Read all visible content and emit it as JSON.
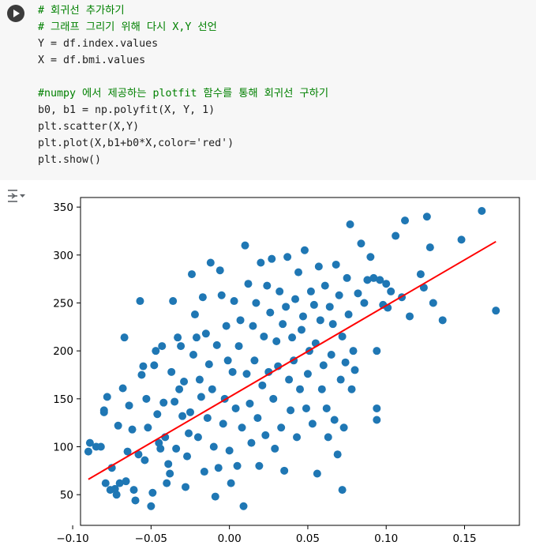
{
  "code_cell": {
    "lines": [
      "# 회귀선 추가하기",
      "# 그래프 그리기 위해 다시 X,Y 선언",
      "Y = df.index.values",
      "X = df.bmi.values",
      "",
      "#numpy 에서 제공하는 plotfit 함수를 통해 회귀선 구하기",
      "b0, b1 = np.polyfit(X, Y, 1)",
      "plt.scatter(X,Y)",
      "plt.plot(X,b1+b0*X,color='red')",
      "plt.show()"
    ],
    "run_icon": "play-icon"
  },
  "output": {
    "toggle_icon": "output-toggle-icon"
  },
  "chart_data": {
    "type": "scatter",
    "xlim": [
      -0.095,
      0.185
    ],
    "ylim": [
      18,
      360
    ],
    "xticks": [
      -0.1,
      -0.05,
      0.0,
      0.05,
      0.1,
      0.15
    ],
    "xtick_labels": [
      "−0.10",
      "−0.05",
      "0.00",
      "0.05",
      "0.10",
      "0.15"
    ],
    "yticks": [
      50,
      100,
      150,
      200,
      250,
      300,
      350
    ],
    "ytick_labels": [
      "50",
      "100",
      "150",
      "200",
      "250",
      "300",
      "350"
    ],
    "grid": false,
    "colors": {
      "points": "#1f77b4",
      "line": "#ff0000"
    },
    "points": [
      [
        -0.09,
        95
      ],
      [
        -0.089,
        104
      ],
      [
        -0.085,
        100
      ],
      [
        -0.082,
        100
      ],
      [
        -0.079,
        62
      ],
      [
        -0.08,
        136
      ],
      [
        -0.08,
        138
      ],
      [
        -0.078,
        152
      ],
      [
        -0.076,
        55
      ],
      [
        -0.075,
        78
      ],
      [
        -0.073,
        56
      ],
      [
        -0.072,
        50
      ],
      [
        -0.07,
        62
      ],
      [
        -0.071,
        122
      ],
      [
        -0.068,
        161
      ],
      [
        -0.067,
        214
      ],
      [
        -0.066,
        64
      ],
      [
        -0.065,
        95
      ],
      [
        -0.064,
        143
      ],
      [
        -0.062,
        118
      ],
      [
        -0.061,
        55
      ],
      [
        -0.06,
        44
      ],
      [
        -0.058,
        92
      ],
      [
        -0.057,
        252
      ],
      [
        -0.056,
        175
      ],
      [
        -0.055,
        184
      ],
      [
        -0.054,
        86
      ],
      [
        -0.053,
        150
      ],
      [
        -0.052,
        120
      ],
      [
        -0.05,
        38
      ],
      [
        -0.049,
        52
      ],
      [
        -0.048,
        185
      ],
      [
        -0.047,
        200
      ],
      [
        -0.046,
        134
      ],
      [
        -0.045,
        104
      ],
      [
        -0.044,
        98
      ],
      [
        -0.043,
        205
      ],
      [
        -0.042,
        146
      ],
      [
        -0.041,
        110
      ],
      [
        -0.04,
        62
      ],
      [
        -0.039,
        82
      ],
      [
        -0.038,
        72
      ],
      [
        -0.037,
        178
      ],
      [
        -0.036,
        252
      ],
      [
        -0.035,
        147
      ],
      [
        -0.034,
        98
      ],
      [
        -0.033,
        214
      ],
      [
        -0.032,
        160
      ],
      [
        -0.031,
        205
      ],
      [
        -0.03,
        132
      ],
      [
        -0.029,
        168
      ],
      [
        -0.028,
        58
      ],
      [
        -0.027,
        90
      ],
      [
        -0.026,
        114
      ],
      [
        -0.025,
        136
      ],
      [
        -0.024,
        280
      ],
      [
        -0.023,
        196
      ],
      [
        -0.022,
        238
      ],
      [
        -0.021,
        214
      ],
      [
        -0.02,
        110
      ],
      [
        -0.019,
        170
      ],
      [
        -0.018,
        152
      ],
      [
        -0.017,
        256
      ],
      [
        -0.016,
        74
      ],
      [
        -0.015,
        218
      ],
      [
        -0.014,
        130
      ],
      [
        -0.013,
        186
      ],
      [
        -0.012,
        292
      ],
      [
        -0.011,
        160
      ],
      [
        -0.01,
        100
      ],
      [
        -0.009,
        48
      ],
      [
        -0.008,
        206
      ],
      [
        -0.007,
        78
      ],
      [
        -0.006,
        284
      ],
      [
        -0.005,
        258
      ],
      [
        -0.004,
        124
      ],
      [
        -0.003,
        150
      ],
      [
        -0.002,
        226
      ],
      [
        -0.001,
        190
      ],
      [
        0.0,
        96
      ],
      [
        0.001,
        62
      ],
      [
        0.002,
        178
      ],
      [
        0.003,
        252
      ],
      [
        0.004,
        140
      ],
      [
        0.005,
        80
      ],
      [
        0.006,
        205
      ],
      [
        0.007,
        232
      ],
      [
        0.008,
        120
      ],
      [
        0.009,
        38
      ],
      [
        0.01,
        310
      ],
      [
        0.011,
        176
      ],
      [
        0.012,
        270
      ],
      [
        0.013,
        145
      ],
      [
        0.014,
        104
      ],
      [
        0.015,
        226
      ],
      [
        0.016,
        190
      ],
      [
        0.017,
        250
      ],
      [
        0.018,
        130
      ],
      [
        0.019,
        80
      ],
      [
        0.02,
        292
      ],
      [
        0.021,
        164
      ],
      [
        0.022,
        215
      ],
      [
        0.023,
        112
      ],
      [
        0.024,
        268
      ],
      [
        0.025,
        178
      ],
      [
        0.026,
        240
      ],
      [
        0.027,
        296
      ],
      [
        0.028,
        150
      ],
      [
        0.029,
        98
      ],
      [
        0.03,
        210
      ],
      [
        0.031,
        184
      ],
      [
        0.032,
        262
      ],
      [
        0.033,
        120
      ],
      [
        0.034,
        228
      ],
      [
        0.035,
        75
      ],
      [
        0.036,
        246
      ],
      [
        0.037,
        298
      ],
      [
        0.038,
        170
      ],
      [
        0.039,
        138
      ],
      [
        0.04,
        214
      ],
      [
        0.041,
        190
      ],
      [
        0.042,
        254
      ],
      [
        0.043,
        110
      ],
      [
        0.044,
        282
      ],
      [
        0.045,
        160
      ],
      [
        0.046,
        222
      ],
      [
        0.047,
        236
      ],
      [
        0.048,
        305
      ],
      [
        0.049,
        140
      ],
      [
        0.05,
        176
      ],
      [
        0.051,
        200
      ],
      [
        0.052,
        262
      ],
      [
        0.053,
        124
      ],
      [
        0.054,
        248
      ],
      [
        0.055,
        208
      ],
      [
        0.056,
        72
      ],
      [
        0.057,
        288
      ],
      [
        0.058,
        232
      ],
      [
        0.059,
        160
      ],
      [
        0.06,
        185
      ],
      [
        0.061,
        268
      ],
      [
        0.062,
        140
      ],
      [
        0.063,
        110
      ],
      [
        0.064,
        246
      ],
      [
        0.065,
        196
      ],
      [
        0.066,
        228
      ],
      [
        0.067,
        128
      ],
      [
        0.068,
        290
      ],
      [
        0.069,
        92
      ],
      [
        0.07,
        258
      ],
      [
        0.071,
        170
      ],
      [
        0.072,
        215
      ],
      [
        0.072,
        55
      ],
      [
        0.073,
        120
      ],
      [
        0.074,
        188
      ],
      [
        0.075,
        276
      ],
      [
        0.076,
        238
      ],
      [
        0.077,
        332
      ],
      [
        0.078,
        160
      ],
      [
        0.079,
        200
      ],
      [
        0.08,
        180
      ],
      [
        0.082,
        260
      ],
      [
        0.084,
        312
      ],
      [
        0.086,
        250
      ],
      [
        0.088,
        274
      ],
      [
        0.09,
        298
      ],
      [
        0.092,
        276
      ],
      [
        0.094,
        200
      ],
      [
        0.094,
        140
      ],
      [
        0.094,
        128
      ],
      [
        0.096,
        274
      ],
      [
        0.098,
        248
      ],
      [
        0.1,
        270
      ],
      [
        0.101,
        245
      ],
      [
        0.103,
        262
      ],
      [
        0.106,
        320
      ],
      [
        0.11,
        256
      ],
      [
        0.112,
        336
      ],
      [
        0.115,
        236
      ],
      [
        0.122,
        280
      ],
      [
        0.124,
        266
      ],
      [
        0.126,
        340
      ],
      [
        0.128,
        308
      ],
      [
        0.13,
        250
      ],
      [
        0.136,
        232
      ],
      [
        0.148,
        316
      ],
      [
        0.161,
        346
      ],
      [
        0.17,
        242
      ]
    ],
    "regression_line": {
      "x": [
        -0.09,
        0.17
      ],
      "y": [
        66,
        314
      ]
    }
  }
}
